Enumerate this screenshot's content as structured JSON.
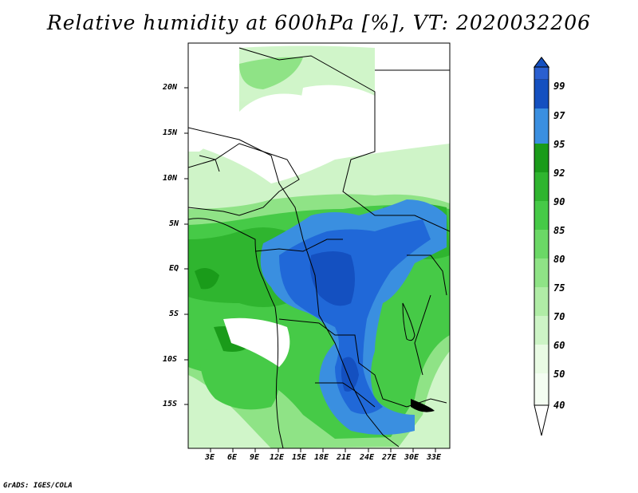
{
  "title": "Relative humidity at 600hPa [%], VT: 2020032206",
  "credit": "GrADS: IGES/COLA",
  "map": {
    "lon_labels": [
      "3E",
      "6E",
      "9E",
      "12E",
      "15E",
      "18E",
      "21E",
      "24E",
      "27E",
      "30E",
      "33E"
    ],
    "lat_labels": [
      "20N",
      "15N",
      "10N",
      "5N",
      "EQ",
      "5S",
      "10S",
      "15S"
    ]
  },
  "colorbar": {
    "levels": [
      "40",
      "50",
      "60",
      "70",
      "75",
      "80",
      "85",
      "90",
      "92",
      "95",
      "97",
      "99"
    ],
    "colors": [
      "#ffffff",
      "#e9fbe4",
      "#cdf4c6",
      "#b0eca6",
      "#8fe386",
      "#6bd866",
      "#46ca47",
      "#2fb52f",
      "#1a9b1a",
      "#3a8fe0",
      "#2068d8",
      "#1450c0",
      "#2a5fd0"
    ]
  },
  "chart_data": {
    "type": "heatmap",
    "variable": "Relative humidity at 600hPa",
    "units": "%",
    "valid_time": "2020032206",
    "lon_range_deg": [
      0,
      35
    ],
    "lat_range_deg": [
      -20,
      24
    ],
    "contour_levels": [
      40,
      50,
      60,
      70,
      75,
      80,
      85,
      90,
      92,
      95,
      97,
      99
    ]
  }
}
